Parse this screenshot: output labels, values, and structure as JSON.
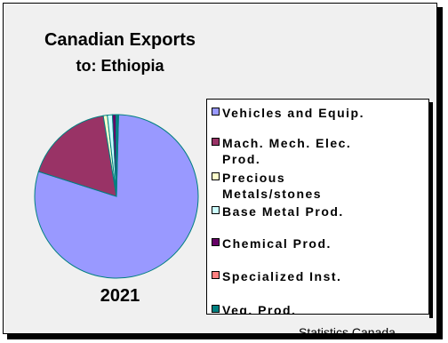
{
  "chart_data": {
    "type": "pie",
    "title": "Canadian Exports",
    "subtitle": "to:  Ethiopia",
    "year": "2021",
    "source": "Statistics Canada",
    "legend_position": "right",
    "slices": [
      {
        "label": "Vehicles and Equip.",
        "value": 79.5,
        "color": "#9999ff"
      },
      {
        "label": "Mach. Mech. Elec. Prod.",
        "value": 17.5,
        "color": "#993366"
      },
      {
        "label": "Precious Metals/stones",
        "value": 0.8,
        "color": "#ffffcc"
      },
      {
        "label": "Base Metal Prod.",
        "value": 1.0,
        "color": "#ccffff"
      },
      {
        "label": "Chemical Prod.",
        "value": 0.7,
        "color": "#660066"
      },
      {
        "label": "Specialized Inst.",
        "value": 0.0,
        "color": "#ff8080"
      },
      {
        "label": "Veg. Prod.",
        "value": 0.5,
        "color": "#008080"
      }
    ]
  },
  "legend": {
    "items": [
      {
        "lines": [
          "Vehicles and Equip."
        ],
        "color": "#9999ff"
      },
      {
        "lines": [
          "Mach. Mech. Elec.",
          "Prod."
        ],
        "color": "#993366"
      },
      {
        "lines": [
          "Precious",
          "Metals/stones"
        ],
        "color": "#ffffcc"
      },
      {
        "lines": [
          "Base Metal Prod."
        ],
        "color": "#ccffff"
      },
      {
        "lines": [
          "Chemical Prod."
        ],
        "color": "#660066"
      },
      {
        "lines": [
          "Specialized Inst."
        ],
        "color": "#ff8080"
      },
      {
        "lines": [
          "Veg. Prod."
        ],
        "color": "#008080"
      }
    ]
  }
}
